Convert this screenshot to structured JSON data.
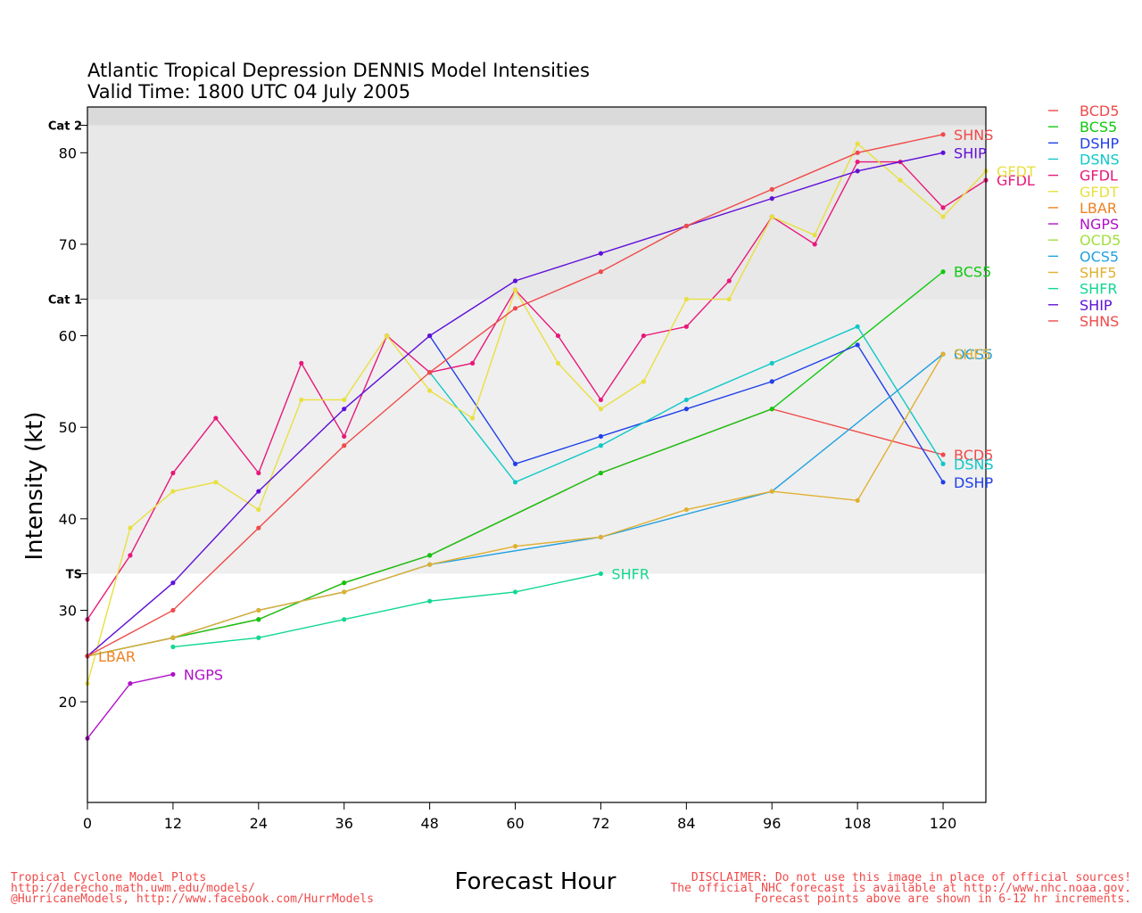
{
  "chart_data": {
    "type": "line",
    "title": "Atlantic Tropical Depression DENNIS Model Intensities",
    "subtitle": "Valid Time: 1800 UTC 04 July 2005",
    "xlabel": "Forecast Hour",
    "ylabel": "Intensity (kt)",
    "xlim": [
      0,
      126
    ],
    "ylim": [
      9,
      85
    ],
    "xticks": [
      0,
      12,
      24,
      36,
      48,
      60,
      72,
      84,
      96,
      108,
      120
    ],
    "yticks": [
      20,
      30,
      40,
      50,
      60,
      70,
      80
    ],
    "intensity_bands": [
      {
        "label": "TS",
        "from": 34,
        "to": 64,
        "color": "#efefef"
      },
      {
        "label": "Cat 1",
        "from": 64,
        "to": 83,
        "color": "#e8e8e8"
      },
      {
        "label": "Cat 2",
        "from": 83,
        "to": 85,
        "color": "#dadada"
      }
    ],
    "band_markers": [
      {
        "label": "TS",
        "value": 34
      },
      {
        "label": "Cat 1",
        "value": 64
      },
      {
        "label": "Cat 2",
        "value": 83
      }
    ],
    "legend_position": "right",
    "series": [
      {
        "name": "BCD5",
        "color": "#f04a4a",
        "points": [
          [
            0,
            25
          ],
          [
            12,
            27
          ],
          [
            24,
            29
          ],
          [
            36,
            33
          ],
          [
            48,
            36
          ],
          [
            72,
            45
          ],
          [
            96,
            52
          ],
          [
            120,
            47
          ]
        ],
        "end_label": "BCD5"
      },
      {
        "name": "BCS5",
        "color": "#10c810",
        "points": [
          [
            0,
            25
          ],
          [
            12,
            27
          ],
          [
            24,
            29
          ],
          [
            36,
            33
          ],
          [
            48,
            36
          ],
          [
            72,
            45
          ],
          [
            96,
            52
          ],
          [
            120,
            67
          ]
        ],
        "end_label": "BCS5"
      },
      {
        "name": "DSHP",
        "color": "#2040e8",
        "points": [
          [
            48,
            60
          ],
          [
            60,
            46
          ],
          [
            72,
            49
          ],
          [
            84,
            52
          ],
          [
            96,
            55
          ],
          [
            108,
            59
          ],
          [
            120,
            44
          ]
        ],
        "end_label": "DSHP"
      },
      {
        "name": "DSNS",
        "color": "#10c8c8",
        "points": [
          [
            48,
            56
          ],
          [
            60,
            44
          ],
          [
            72,
            48
          ],
          [
            84,
            53
          ],
          [
            96,
            57
          ],
          [
            108,
            61
          ],
          [
            120,
            46
          ]
        ],
        "end_label": "DSNS"
      },
      {
        "name": "GFDL",
        "color": "#e8187a",
        "points": [
          [
            0,
            29
          ],
          [
            6,
            36
          ],
          [
            12,
            45
          ],
          [
            18,
            51
          ],
          [
            24,
            45
          ],
          [
            30,
            57
          ],
          [
            36,
            49
          ],
          [
            42,
            60
          ],
          [
            48,
            56
          ],
          [
            54,
            57
          ],
          [
            60,
            65
          ],
          [
            66,
            60
          ],
          [
            72,
            53
          ],
          [
            78,
            60
          ],
          [
            84,
            61
          ],
          [
            90,
            66
          ],
          [
            96,
            73
          ],
          [
            102,
            70
          ],
          [
            108,
            79
          ],
          [
            114,
            79
          ],
          [
            120,
            74
          ],
          [
            126,
            77
          ]
        ],
        "end_label": "GFDL"
      },
      {
        "name": "GFDT",
        "color": "#e8e040",
        "points": [
          [
            0,
            22
          ],
          [
            6,
            39
          ],
          [
            12,
            43
          ],
          [
            18,
            44
          ],
          [
            24,
            41
          ],
          [
            30,
            53
          ],
          [
            36,
            53
          ],
          [
            42,
            60
          ],
          [
            48,
            54
          ],
          [
            54,
            51
          ],
          [
            60,
            65
          ],
          [
            66,
            57
          ],
          [
            72,
            52
          ],
          [
            78,
            55
          ],
          [
            84,
            64
          ],
          [
            90,
            64
          ],
          [
            96,
            73
          ],
          [
            102,
            71
          ],
          [
            108,
            81
          ],
          [
            114,
            77
          ],
          [
            120,
            73
          ],
          [
            126,
            78
          ]
        ],
        "end_label": "GFDT"
      },
      {
        "name": "LBAR",
        "color": "#f08020",
        "points": [
          [
            0,
            25
          ]
        ],
        "end_label": "LBAR"
      },
      {
        "name": "NGPS",
        "color": "#b010c8",
        "points": [
          [
            0,
            16
          ],
          [
            6,
            22
          ],
          [
            12,
            23
          ]
        ],
        "end_label": "NGPS"
      },
      {
        "name": "OCD5",
        "color": "#a0e040",
        "points": [],
        "end_label": ""
      },
      {
        "name": "OCS5",
        "color": "#20a0e0",
        "points": [
          [
            0,
            25
          ],
          [
            12,
            27
          ],
          [
            24,
            30
          ],
          [
            36,
            32
          ],
          [
            48,
            35
          ],
          [
            72,
            38
          ],
          [
            96,
            43
          ],
          [
            120,
            58
          ]
        ],
        "end_label": "OCS5"
      },
      {
        "name": "SHF5",
        "color": "#e0b030",
        "points": [
          [
            0,
            25
          ],
          [
            12,
            27
          ],
          [
            24,
            30
          ],
          [
            36,
            32
          ],
          [
            48,
            35
          ],
          [
            60,
            37
          ],
          [
            72,
            38
          ],
          [
            84,
            41
          ],
          [
            96,
            43
          ],
          [
            108,
            42
          ],
          [
            120,
            58
          ]
        ],
        "end_label": "SHF5"
      },
      {
        "name": "SHFR",
        "color": "#10d890",
        "points": [
          [
            12,
            26
          ],
          [
            24,
            27
          ],
          [
            36,
            29
          ],
          [
            48,
            31
          ],
          [
            60,
            32
          ],
          [
            72,
            34
          ]
        ],
        "end_label": "SHFR"
      },
      {
        "name": "SHIP",
        "color": "#6010d8",
        "points": [
          [
            0,
            25
          ],
          [
            12,
            33
          ],
          [
            24,
            43
          ],
          [
            36,
            52
          ],
          [
            48,
            60
          ],
          [
            60,
            66
          ],
          [
            72,
            69
          ],
          [
            84,
            72
          ],
          [
            96,
            75
          ],
          [
            108,
            78
          ],
          [
            120,
            80
          ]
        ],
        "end_label": "SHIP"
      },
      {
        "name": "SHNS",
        "color": "#f04a4a",
        "points": [
          [
            0,
            25
          ],
          [
            12,
            30
          ],
          [
            24,
            39
          ],
          [
            36,
            48
          ],
          [
            48,
            56
          ],
          [
            60,
            63
          ],
          [
            72,
            67
          ],
          [
            84,
            72
          ],
          [
            96,
            76
          ],
          [
            108,
            80
          ],
          [
            120,
            82
          ]
        ],
        "end_label": "SHNS"
      }
    ]
  },
  "footer": {
    "left_line1": "Tropical Cyclone Model Plots",
    "left_line2": "http://derecho.math.uwm.edu/models/",
    "left_line3": "@HurricaneModels, http://www.facebook.com/HurrModels",
    "right_line1": "DISCLAIMER: Do not use this image in place of official sources!",
    "right_line2": "The official NHC forecast is available at http://www.nhc.noaa.gov.",
    "right_line3": "Forecast points above are shown in 6-12 hr increments."
  }
}
